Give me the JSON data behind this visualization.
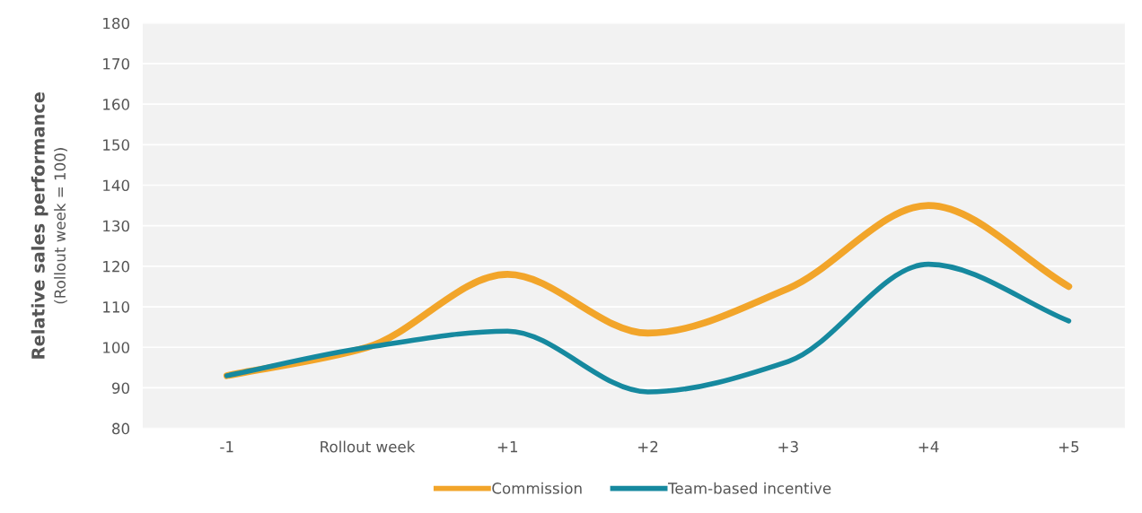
{
  "chart_data": {
    "type": "line",
    "ylabel": "Relative sales performance\n(Rollout week = 100)",
    "categories": [
      "-1",
      "Rollout week",
      "+1",
      "+2",
      "+3",
      "+4",
      "+5"
    ],
    "series": [
      {
        "name": "Commission",
        "color": "#f2a52a",
        "values": [
          93,
          100,
          118,
          103.5,
          114.5,
          135,
          115
        ]
      },
      {
        "name": "Team-based incentive",
        "color": "#16899f",
        "values": [
          93,
          100,
          104,
          89,
          96.5,
          120.5,
          106.5
        ]
      }
    ],
    "ylim": [
      80,
      180
    ],
    "yticks": [
      80,
      90,
      100,
      110,
      120,
      130,
      140,
      150,
      160,
      170,
      180
    ],
    "grid": "y",
    "legend": "bottom",
    "marker": "none",
    "line_style": "solid"
  }
}
